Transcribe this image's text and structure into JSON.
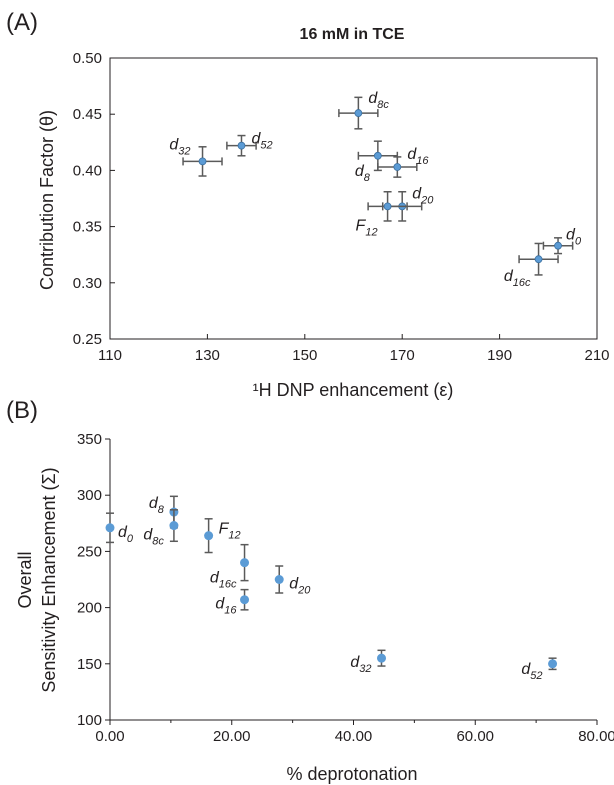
{
  "chart_data": [
    {
      "panel": "(A)",
      "type": "scatter",
      "title": "16 mM in TCE",
      "xlabel": "¹H DNP enhancement (ε)",
      "ylabel": "Contribution Factor (θ)",
      "xlim": [
        110,
        210
      ],
      "ylim": [
        0.25,
        0.5
      ],
      "xticks": [
        "110",
        "130",
        "150",
        "170",
        "190",
        "210"
      ],
      "yticks": [
        "0.25",
        "0.30",
        "0.35",
        "0.40",
        "0.45",
        "0.50"
      ],
      "grid": false,
      "color": "#5b9bd5",
      "points": [
        {
          "label": "d",
          "sub": "0",
          "x": 202,
          "y": 0.333,
          "xerr": 3,
          "yerr": 0.007
        },
        {
          "label": "d",
          "sub": "16c",
          "x": 198,
          "y": 0.321,
          "xerr": 4,
          "yerr": 0.014
        },
        {
          "label": "d",
          "sub": "32",
          "x": 129,
          "y": 0.408,
          "xerr": 4,
          "yerr": 0.013
        },
        {
          "label": "d",
          "sub": "52",
          "x": 137,
          "y": 0.422,
          "xerr": 3,
          "yerr": 0.009
        },
        {
          "label": "d",
          "sub": "8c",
          "x": 161,
          "y": 0.451,
          "xerr": 4,
          "yerr": 0.014
        },
        {
          "label": "d",
          "sub": "8",
          "x": 165,
          "y": 0.413,
          "xerr": 4,
          "yerr": 0.013
        },
        {
          "label": "d",
          "sub": "16",
          "x": 169,
          "y": 0.403,
          "xerr": 4,
          "yerr": 0.009
        },
        {
          "label": "d",
          "sub": "20",
          "x": 170,
          "y": 0.368,
          "xerr": 4,
          "yerr": 0.013
        },
        {
          "label": "F",
          "sub": "12",
          "x": 167,
          "y": 0.368,
          "xerr": 4,
          "yerr": 0.013
        }
      ]
    },
    {
      "panel": "(B)",
      "type": "scatter",
      "xlabel": "% deprotonation",
      "ylabel": [
        "Overall",
        "Sensitivity Enhancement (Σ)"
      ],
      "xlim": [
        0,
        80
      ],
      "ylim": [
        100,
        350
      ],
      "xticks": [
        "0.00",
        "20.00",
        "40.00",
        "60.00",
        "80.00"
      ],
      "yticks": [
        "100",
        "150",
        "200",
        "250",
        "300",
        "350"
      ],
      "grid": false,
      "color": "#5b9bd5",
      "points": [
        {
          "label": "d",
          "sub": "0",
          "x": 0,
          "y": 271,
          "yerr": 13
        },
        {
          "label": "d",
          "sub": "8",
          "x": 10.5,
          "y": 285,
          "yerr": 14
        },
        {
          "label": "d",
          "sub": "8c",
          "x": 10.5,
          "y": 273,
          "yerr": 14
        },
        {
          "label": "F",
          "sub": "12",
          "x": 16.2,
          "y": 264,
          "yerr": 15
        },
        {
          "label": "d",
          "sub": "16c",
          "x": 22.1,
          "y": 240,
          "yerr": 16
        },
        {
          "label": "d",
          "sub": "16",
          "x": 22.1,
          "y": 207,
          "yerr": 9
        },
        {
          "label": "d",
          "sub": "20",
          "x": 27.8,
          "y": 225,
          "yerr": 12
        },
        {
          "label": "d",
          "sub": "32",
          "x": 44.6,
          "y": 155,
          "yerr": 7
        },
        {
          "label": "d",
          "sub": "52",
          "x": 72.7,
          "y": 150,
          "yerr": 5
        }
      ]
    }
  ]
}
